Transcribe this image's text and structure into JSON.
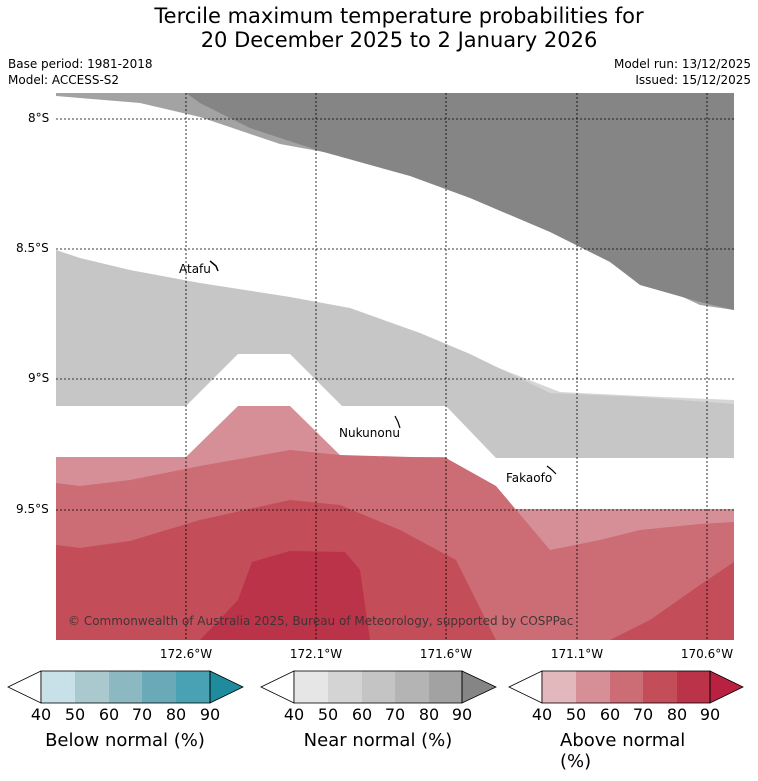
{
  "title": {
    "line1": "Tercile maximum temperature probabilities for",
    "line2": "20 December 2025 to 2 January 2026"
  },
  "meta": {
    "base_period": "Base period: 1981-2018",
    "model": "Model: ACCESS-S2",
    "model_run": "Model run: 13/12/2025",
    "issued": "Issued: 15/12/2025"
  },
  "map": {
    "lat_labels": [
      "8°S",
      "8.5°S",
      "9°S",
      "9.5°S"
    ],
    "lon_labels": [
      "172.6°W",
      "172.1°W",
      "171.6°W",
      "171.1°W",
      "170.6°W"
    ],
    "places": [
      "Atafu",
      "Nukunonu",
      "Fakaofo"
    ],
    "copyright": "© Commonwealth of Australia 2025, Bureau of Meteorology, supported by COSPPac"
  },
  "colorbars": [
    {
      "label": "Below normal (%)",
      "ticks": [
        "40",
        "50",
        "60",
        "70",
        "80",
        "90"
      ],
      "colors": [
        "#c8e1e8",
        "#a9c9ce",
        "#8cb8c2",
        "#6aaab8",
        "#49a2b3",
        "#1e8c9c"
      ]
    },
    {
      "label": "Near normal (%)",
      "ticks": [
        "40",
        "50",
        "60",
        "70",
        "80",
        "90"
      ],
      "colors": [
        "#e6e6e6",
        "#d4d4d4",
        "#c4c4c4",
        "#b4b4b4",
        "#a2a2a2",
        "#858585"
      ]
    },
    {
      "label": "Above normal (%)",
      "ticks": [
        "40",
        "50",
        "60",
        "70",
        "80",
        "90"
      ],
      "colors": [
        "#e2b8bc",
        "#d68f96",
        "#cc6c74",
        "#c34d58",
        "#bb3349",
        "#b8213f"
      ]
    }
  ]
}
